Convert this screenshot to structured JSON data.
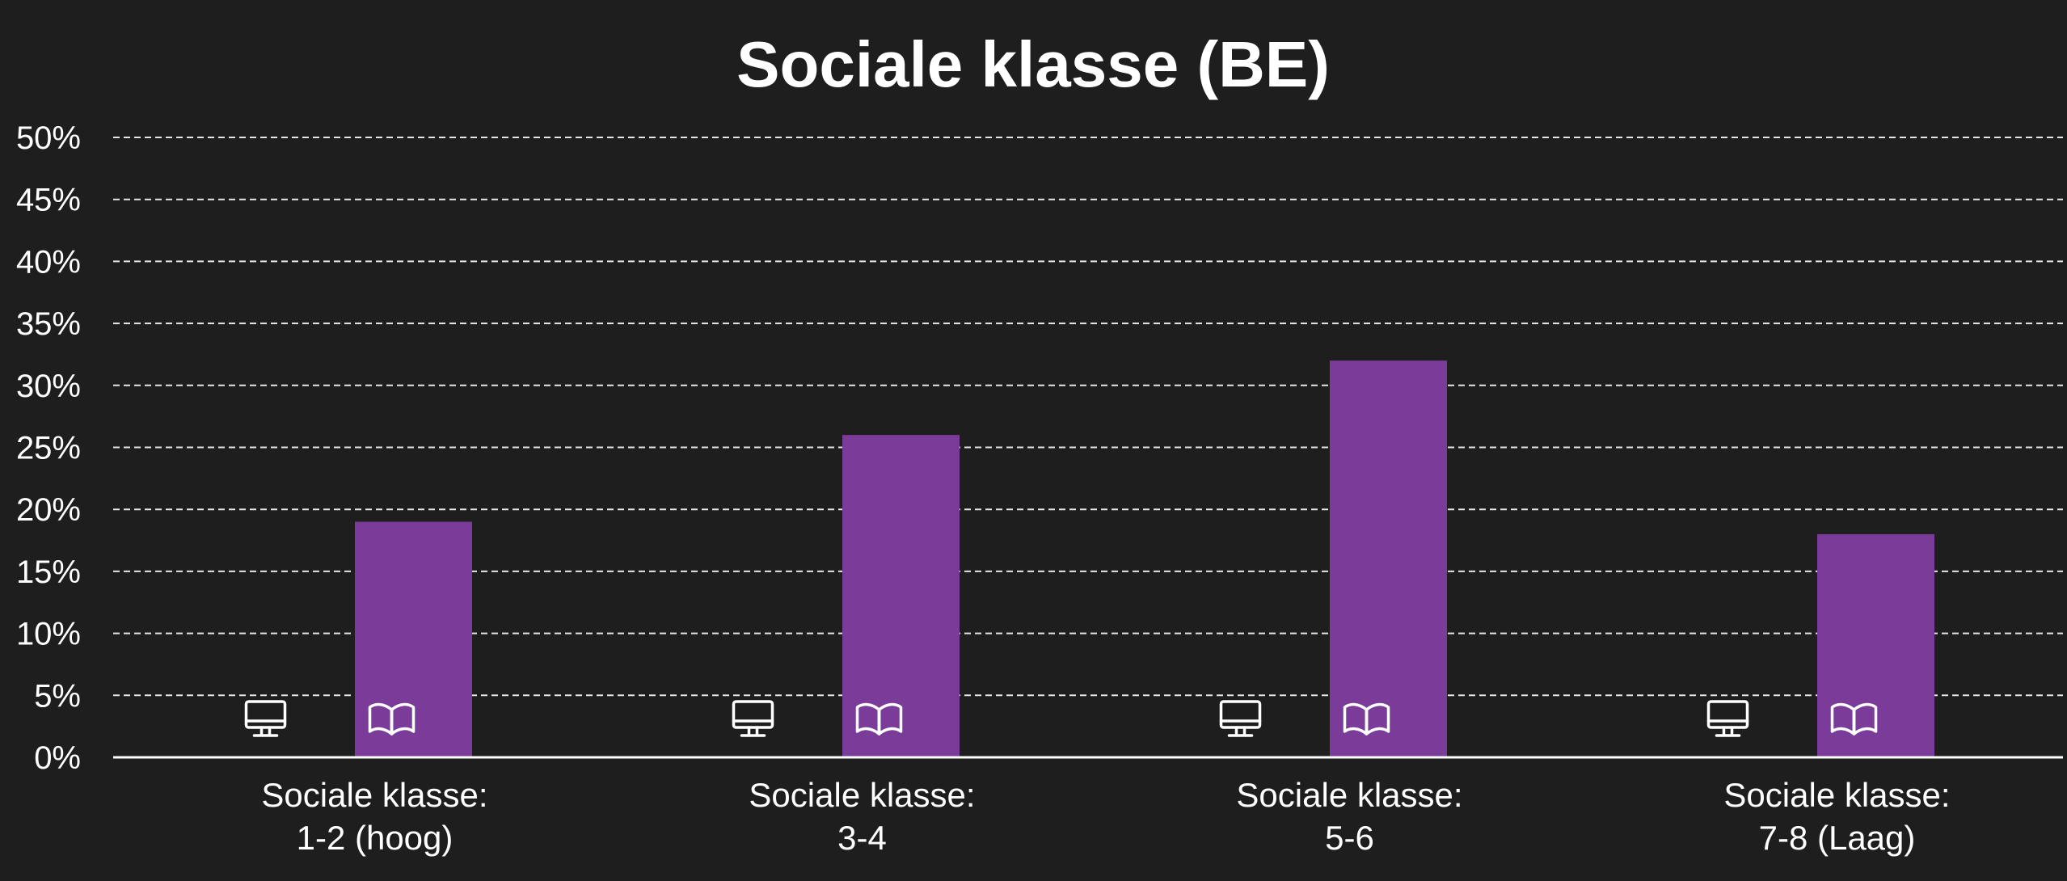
{
  "colors": {
    "background": "#1e1e1e",
    "bar": "#7a3c98",
    "text": "#ffffff",
    "grid": "#e6e6e6"
  },
  "chart_data": {
    "type": "bar",
    "title": "Sociale klasse (BE)",
    "xlabel": "",
    "ylabel": "",
    "ylim": [
      0,
      50
    ],
    "y_ticks": [
      "0%",
      "5%",
      "10%",
      "15%",
      "20%",
      "25%",
      "30%",
      "35%",
      "40%",
      "45%",
      "50%"
    ],
    "y_tick_values": [
      0,
      5,
      10,
      15,
      20,
      25,
      30,
      35,
      40,
      45,
      50
    ],
    "grid": true,
    "legend": "none",
    "categories": [
      [
        "Sociale klasse:",
        "1-2 (hoog)"
      ],
      [
        "Sociale klasse:",
        "3-4"
      ],
      [
        "Sociale klasse:",
        "5-6"
      ],
      [
        "Sociale klasse:",
        "7-8 (Laag)"
      ]
    ],
    "series": [
      {
        "icon": "monitor-icon",
        "values": [
          0,
          0,
          0,
          0
        ]
      },
      {
        "icon": "book-icon",
        "values": [
          19,
          26,
          32,
          18
        ]
      }
    ]
  }
}
